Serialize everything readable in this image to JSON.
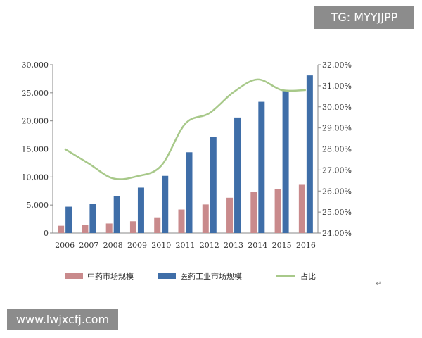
{
  "watermarks": {
    "top": "TG: MYYJJPP",
    "bottom": "www.lwjxcfj.com"
  },
  "return_mark": "↵",
  "chart_data": {
    "type": "bar",
    "categories": [
      "2006",
      "2007",
      "2008",
      "2009",
      "2010",
      "2011",
      "2012",
      "2013",
      "2014",
      "2015",
      "2016"
    ],
    "series": [
      {
        "name": "中药市场规模",
        "type": "bar",
        "axis": "left",
        "color": "#c98a8c",
        "values": [
          1300,
          1400,
          1700,
          2100,
          2800,
          4200,
          5100,
          6300,
          7300,
          7900,
          8600
        ]
      },
      {
        "name": "医药工业市场规模",
        "type": "bar",
        "axis": "left",
        "color": "#3f6ea8",
        "values": [
          4700,
          5200,
          6600,
          8100,
          10200,
          14400,
          17100,
          20600,
          23400,
          25500,
          28100
        ]
      },
      {
        "name": "占比",
        "type": "line",
        "axis": "right",
        "color": "#a8c98a",
        "values": [
          28.0,
          27.3,
          26.6,
          26.7,
          27.2,
          29.2,
          29.7,
          30.7,
          31.3,
          30.8,
          30.8
        ]
      }
    ],
    "y_left": {
      "ylim": [
        0,
        30000
      ],
      "ticks": [
        "0",
        "5,000",
        "10,000",
        "15,000",
        "20,000",
        "25,000",
        "30,000"
      ]
    },
    "y_right": {
      "ylim": [
        24.0,
        32.0
      ],
      "ticks": [
        "24.00%",
        "25.00%",
        "26.00%",
        "27.00%",
        "28.00%",
        "29.00%",
        "30.00%",
        "31.00%",
        "32.00%"
      ]
    },
    "legend_position": "bottom",
    "grid": false
  }
}
